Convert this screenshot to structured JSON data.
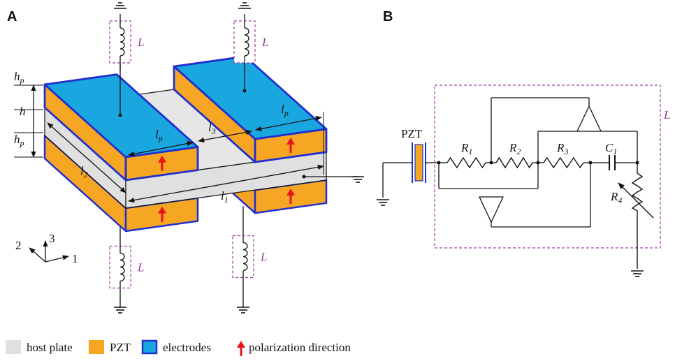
{
  "panels": [
    {
      "label": "A"
    },
    {
      "label": "B"
    }
  ],
  "panel_a": {
    "inductor_labels": [
      "L",
      "L",
      "L",
      "L"
    ],
    "dimensions": [
      {
        "base": "h",
        "sub": "p"
      },
      {
        "base": "h"
      },
      {
        "base": "h",
        "sub": "p"
      },
      {
        "base": "l",
        "sub": "p"
      },
      {
        "base": "l",
        "sub": "3"
      },
      {
        "base": "l",
        "sub": "p"
      },
      {
        "base": "l",
        "sub": "2"
      },
      {
        "base": "l",
        "sub": "1"
      }
    ],
    "axes": [
      "2",
      "3",
      "1"
    ]
  },
  "panel_b": {
    "inductor_label": "L",
    "piezo_label": "PZT",
    "components": [
      {
        "base": "R",
        "sub": "1"
      },
      {
        "base": "R",
        "sub": "2"
      },
      {
        "base": "R",
        "sub": "3"
      },
      {
        "base": "C",
        "sub": "1"
      },
      {
        "base": "R",
        "sub": "4"
      }
    ]
  },
  "legend": [
    "host plate",
    "PZT",
    "electrodes",
    "polarization direction"
  ]
}
